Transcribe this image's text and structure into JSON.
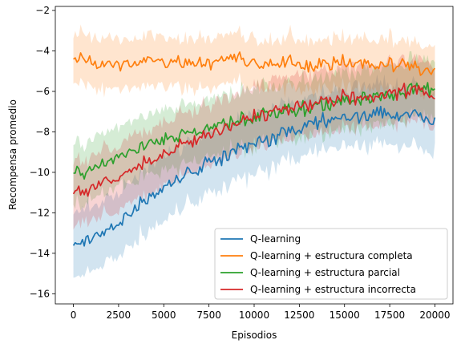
{
  "chart_data": {
    "type": "line",
    "title": "",
    "xlabel": "Episodios",
    "ylabel": "Recompensa promedio",
    "xlim": [
      -1000,
      21000
    ],
    "ylim": [
      -16.5,
      -1.8
    ],
    "xticks": [
      0,
      2500,
      5000,
      7500,
      10000,
      12500,
      15000,
      17500,
      20000
    ],
    "xtick_labels": [
      "0",
      "2500",
      "5000",
      "7500",
      "10000",
      "12500",
      "15000",
      "17500",
      "20000"
    ],
    "yticks": [
      -16,
      -14,
      -12,
      -10,
      -8,
      -6,
      -4,
      -2
    ],
    "ytick_labels": [
      "−16",
      "−14",
      "−12",
      "−10",
      "−8",
      "−6",
      "−4",
      "−2"
    ],
    "grid": false,
    "legend_position": "lower-right",
    "shaded_band": "mean ± std",
    "series": [
      {
        "name": "Q-learning",
        "color": "#1f77b4",
        "x": [
          0,
          1000,
          2000,
          3000,
          4000,
          5000,
          6000,
          7000,
          8000,
          9000,
          10000,
          11000,
          12000,
          13000,
          14000,
          15000,
          16000,
          17000,
          18000,
          19000,
          20000
        ],
        "values": [
          -13.5,
          -13.2,
          -12.8,
          -12.2,
          -11.3,
          -10.7,
          -10.2,
          -9.7,
          -9.4,
          -9.0,
          -8.7,
          -8.3,
          -7.9,
          -7.6,
          -7.4,
          -7.2,
          -7.2,
          -7.1,
          -7.3,
          -7.0,
          -7.6
        ],
        "std": [
          1.6,
          1.6,
          1.6,
          1.6,
          1.6,
          1.6,
          1.5,
          1.5,
          1.5,
          1.5,
          1.5,
          1.4,
          1.4,
          1.4,
          1.4,
          1.4,
          1.5,
          1.5,
          1.5,
          1.5,
          1.5
        ]
      },
      {
        "name": "Q-learning + estructura completa",
        "color": "#ff7f0e",
        "x": [
          0,
          1000,
          2000,
          3000,
          4000,
          5000,
          6000,
          7000,
          8000,
          9000,
          10000,
          11000,
          12000,
          13000,
          14000,
          15000,
          16000,
          17000,
          18000,
          19000,
          20000
        ],
        "values": [
          -4.3,
          -4.5,
          -4.6,
          -4.7,
          -4.5,
          -4.5,
          -4.6,
          -4.6,
          -4.5,
          -4.5,
          -4.6,
          -4.7,
          -4.6,
          -4.7,
          -4.5,
          -4.7,
          -4.6,
          -4.6,
          -4.7,
          -4.9,
          -5.0
        ],
        "std": [
          1.2,
          1.2,
          1.2,
          1.2,
          1.2,
          1.2,
          1.2,
          1.2,
          1.2,
          1.2,
          1.2,
          1.2,
          1.2,
          1.2,
          1.2,
          1.2,
          1.2,
          1.2,
          1.2,
          1.2,
          1.2
        ]
      },
      {
        "name": "Q-learning + estructura parcial",
        "color": "#2ca02c",
        "x": [
          0,
          1000,
          2000,
          3000,
          4000,
          5000,
          6000,
          7000,
          8000,
          9000,
          10000,
          11000,
          12000,
          13000,
          14000,
          15000,
          16000,
          17000,
          18000,
          19000,
          20000
        ],
        "values": [
          -10.1,
          -9.8,
          -9.4,
          -9.0,
          -8.7,
          -8.4,
          -8.1,
          -7.9,
          -7.7,
          -7.5,
          -7.3,
          -7.1,
          -6.9,
          -6.8,
          -6.7,
          -6.5,
          -6.3,
          -6.2,
          -6.1,
          -5.8,
          -6.0
        ],
        "std": [
          1.5,
          1.5,
          1.5,
          1.5,
          1.5,
          1.5,
          1.5,
          1.4,
          1.4,
          1.4,
          1.4,
          1.4,
          1.4,
          1.4,
          1.4,
          1.4,
          1.4,
          1.4,
          1.4,
          1.4,
          1.4
        ]
      },
      {
        "name": "Q-learning + estructura incorrecta",
        "color": "#d62728",
        "x": [
          0,
          1000,
          2000,
          3000,
          4000,
          5000,
          6000,
          7000,
          8000,
          9000,
          10000,
          11000,
          12000,
          13000,
          14000,
          15000,
          16000,
          17000,
          18000,
          19000,
          20000
        ],
        "values": [
          -11.0,
          -10.8,
          -10.4,
          -10.0,
          -9.5,
          -9.1,
          -8.6,
          -8.3,
          -8.0,
          -7.6,
          -7.3,
          -7.1,
          -6.9,
          -6.6,
          -6.4,
          -6.3,
          -6.2,
          -6.1,
          -6.0,
          -6.0,
          -6.2
        ],
        "std": [
          1.6,
          1.6,
          1.6,
          1.6,
          1.6,
          1.6,
          1.6,
          1.5,
          1.5,
          1.5,
          1.5,
          1.5,
          1.5,
          1.5,
          1.5,
          1.5,
          1.5,
          1.5,
          1.5,
          1.5,
          1.5
        ]
      }
    ]
  }
}
